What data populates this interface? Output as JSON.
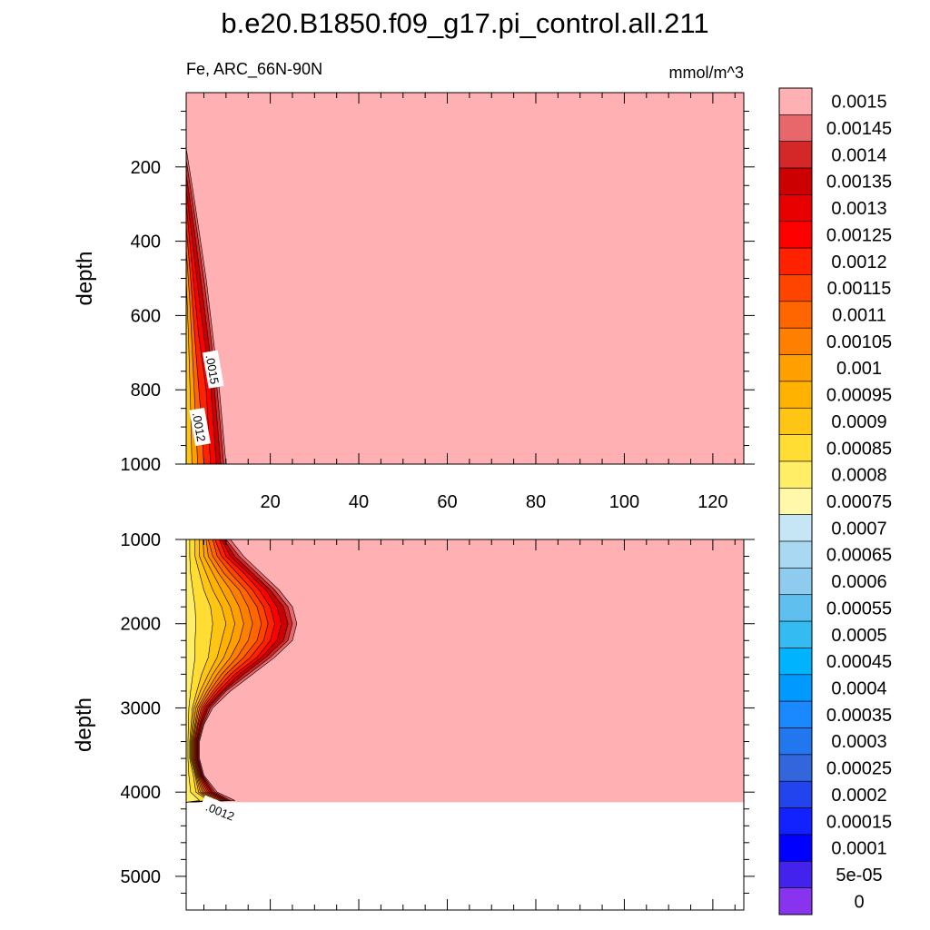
{
  "chart_data": [
    {
      "type": "contour",
      "title": "b.e20.B1850.f09_g17.pi_control.all.211",
      "left_label": "Fe, ARC_66N-90N",
      "right_label": "mmol/m^3",
      "ylabel": "depth",
      "xlim": [
        1,
        127
      ],
      "ylim": [
        1000,
        0
      ],
      "x_ticks": [
        20,
        40,
        60,
        80,
        100,
        120
      ],
      "x_tick_labels": [
        "20",
        "40",
        "60",
        "80",
        "100",
        "120"
      ],
      "y_ticks": [
        200,
        400,
        600,
        800,
        1000
      ],
      "y_tick_labels": [
        "200",
        "400",
        "600",
        "800",
        "1000"
      ],
      "background_value": 0.0015,
      "contour_labels": [
        {
          "text": ".0015",
          "x": 7,
          "y": 745
        },
        {
          "text": ".0012",
          "x": 4,
          "y": 900
        }
      ]
    },
    {
      "type": "contour",
      "ylabel": "depth",
      "xlim": [
        1,
        127
      ],
      "ylim": [
        5400,
        1000
      ],
      "x_ticks": [
        20,
        40,
        60,
        80,
        100,
        120
      ],
      "y_ticks": [
        1000,
        2000,
        3000,
        4000,
        5000
      ],
      "y_tick_labels": [
        "1000",
        "2000",
        "3000",
        "4000",
        "5000"
      ],
      "bottom_depth": 4120,
      "background_value": 0.0015,
      "contour_labels": [
        {
          "text": ".0012",
          "x": 5,
          "y": 4140
        }
      ]
    }
  ],
  "colorbar": {
    "levels": [
      "0.0015",
      "0.00145",
      "0.0014",
      "0.00135",
      "0.0013",
      "0.00125",
      "0.0012",
      "0.00115",
      "0.0011",
      "0.00105",
      "0.001",
      "0.00095",
      "0.0009",
      "0.00085",
      "0.0008",
      "0.00075",
      "0.0007",
      "0.00065",
      "0.0006",
      "0.00055",
      "0.0005",
      "0.00045",
      "0.0004",
      "0.00035",
      "0.0003",
      "0.00025",
      "0.0002",
      "0.00015",
      "0.0001",
      "5e-05",
      "0"
    ],
    "colors": [
      "#ffb0b3",
      "#e8676b",
      "#d42828",
      "#cc0000",
      "#e80000",
      "#ff0000",
      "#ff2200",
      "#ff4400",
      "#ff6600",
      "#ff8000",
      "#ffa000",
      "#ffb300",
      "#ffc515",
      "#ffdd33",
      "#ffee66",
      "#fff8aa",
      "#c6e6f6",
      "#a9d9f2",
      "#8fcbee",
      "#5fbfee",
      "#33bbf2",
      "#00b3ff",
      "#0099ff",
      "#1a88ff",
      "#2277ee",
      "#3366dd",
      "#2244ee",
      "#1122ff",
      "#0000ff",
      "#4422ee",
      "#8833ee"
    ]
  }
}
